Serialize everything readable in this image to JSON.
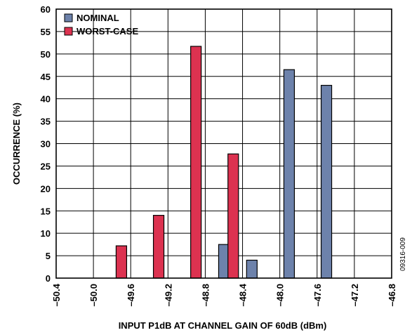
{
  "figure_id": "09316-009",
  "chart_data": {
    "type": "bar",
    "xlabel": "INPUT P1dB AT CHANNEL GAIN OF 60dB (dBm)",
    "ylabel": "OCCURRENCE (%)",
    "xlim": [
      -50.4,
      -46.8
    ],
    "ylim": [
      0,
      60
    ],
    "x_ticks": [
      -50.4,
      -50.0,
      -49.6,
      -49.2,
      -48.8,
      -48.4,
      -48.0,
      -47.6,
      -47.2,
      -46.8
    ],
    "x_tick_labels": [
      "–50.4",
      "–50.0",
      "–49.6",
      "–49.2",
      "–48.8",
      "–48.4",
      "–48.0",
      "–47.6",
      "–47.2",
      "–46.8"
    ],
    "y_ticks": [
      0,
      5,
      10,
      15,
      20,
      25,
      30,
      35,
      40,
      45,
      50,
      55,
      60
    ],
    "y_tick_labels": [
      "0",
      "5",
      "10",
      "15",
      "20",
      "25",
      "30",
      "35",
      "40",
      "45",
      "50",
      "55",
      "60"
    ],
    "grid": true,
    "legend_position": "top-left",
    "series": [
      {
        "name": "NOMINAL",
        "color": "#6d82ab",
        "points": [
          {
            "x": -48.6,
            "y": 7.5
          },
          {
            "x": -48.3,
            "y": 4
          },
          {
            "x": -47.9,
            "y": 46.5
          },
          {
            "x": -47.5,
            "y": 43
          }
        ]
      },
      {
        "name": "WORST-CASE",
        "color": "#dc3250",
        "points": [
          {
            "x": -49.7,
            "y": 7.2
          },
          {
            "x": -49.3,
            "y": 14
          },
          {
            "x": -48.9,
            "y": 51.7
          },
          {
            "x": -48.5,
            "y": 27.7
          }
        ]
      }
    ]
  }
}
